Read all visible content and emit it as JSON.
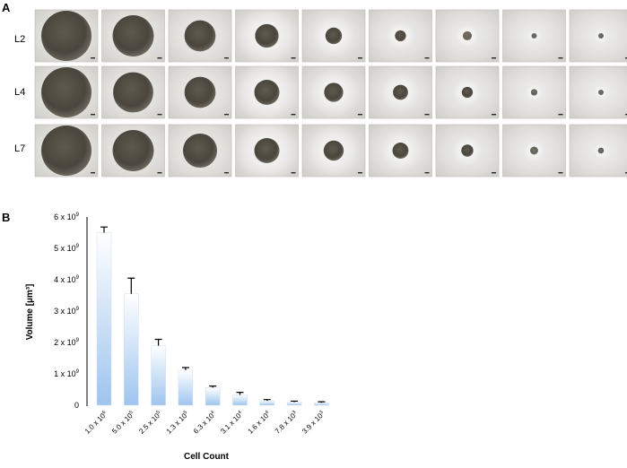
{
  "panel_a": {
    "letter": "A",
    "rows": [
      "L2",
      "L4",
      "L7"
    ],
    "columns": 9,
    "spheroid_size_index": [
      [
        1.0,
        0.82,
        0.62,
        0.47,
        0.33,
        0.22,
        0.18,
        0.1,
        0.07
      ],
      [
        1.0,
        0.8,
        0.62,
        0.5,
        0.38,
        0.3,
        0.22,
        0.13,
        0.1
      ],
      [
        1.0,
        0.82,
        0.68,
        0.5,
        0.4,
        0.32,
        0.24,
        0.16,
        0.12
      ]
    ]
  },
  "panel_b": {
    "letter": "B"
  },
  "chart_data": {
    "type": "bar",
    "xlabel": "Cell Count",
    "ylabel": "Volume [µm³]",
    "categories": [
      {
        "base": "1.0 x 10",
        "exp": "6"
      },
      {
        "base": "5.0 x 10",
        "exp": "5"
      },
      {
        "base": "2.5 x 10",
        "exp": "5"
      },
      {
        "base": "1.3 x 10",
        "exp": "5"
      },
      {
        "base": "6.3 x 10",
        "exp": "4"
      },
      {
        "base": "3.1 x 10",
        "exp": "4"
      },
      {
        "base": "1.6 x 10",
        "exp": "4"
      },
      {
        "base": "7.8 x 10",
        "exp": "3"
      },
      {
        "base": "3.9 x 10",
        "exp": "3"
      }
    ],
    "values": [
      5.5,
      3.55,
      1.9,
      1.12,
      0.56,
      0.33,
      0.14,
      0.1,
      0.08
    ],
    "errors": [
      0.18,
      0.5,
      0.2,
      0.08,
      0.05,
      0.08,
      0.04,
      0.03,
      0.03
    ],
    "value_unit_exp": "9",
    "ylim": [
      0,
      6
    ],
    "yticks": [
      {
        "value": 0,
        "base": "0",
        "exp": ""
      },
      {
        "value": 1,
        "base": "1 x 10",
        "exp": "9"
      },
      {
        "value": 2,
        "base": "2 x 10",
        "exp": "9"
      },
      {
        "value": 3,
        "base": "3 x 10",
        "exp": "9"
      },
      {
        "value": 4,
        "base": "4 x 10",
        "exp": "9"
      },
      {
        "value": 5,
        "base": "5 x 10",
        "exp": "9"
      },
      {
        "value": 6,
        "base": "6 x 10",
        "exp": "9"
      }
    ],
    "bar_color_top": "#ffffff",
    "bar_color_bottom": "#9ec4ee"
  }
}
